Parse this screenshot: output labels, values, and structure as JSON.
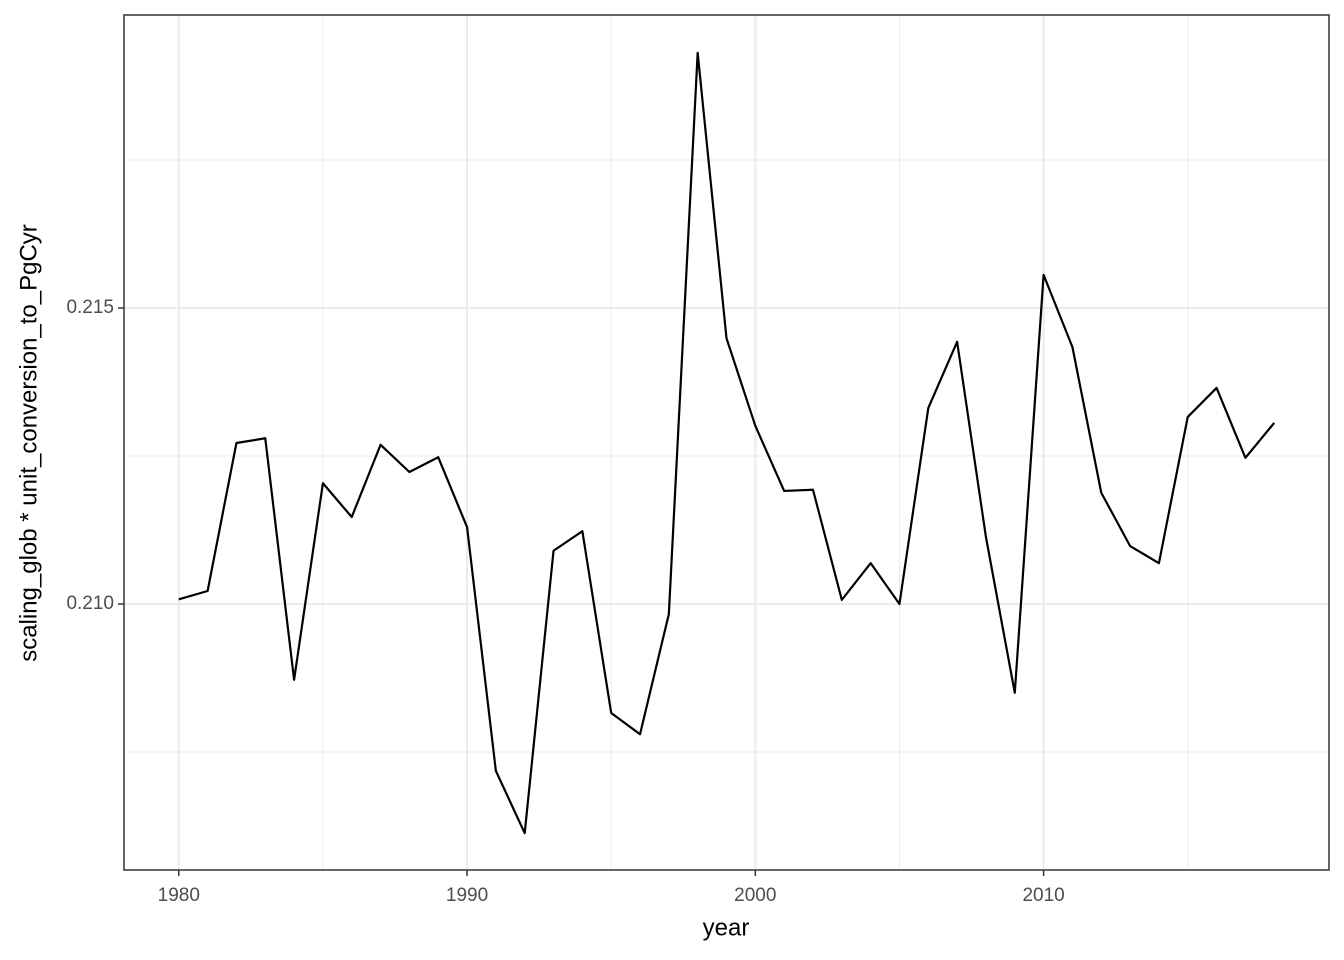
{
  "chart_data": {
    "type": "line",
    "x_label": "year",
    "y_label": "scaling_glob * unit_conversion_to_PgCyr",
    "x": [
      1980,
      1981,
      1982,
      1983,
      1984,
      1985,
      1986,
      1987,
      1988,
      1989,
      1990,
      1991,
      1992,
      1993,
      1994,
      1995,
      1996,
      1997,
      1998,
      1999,
      2000,
      2001,
      2002,
      2003,
      2004,
      2005,
      2006,
      2007,
      2008,
      2009,
      2010,
      2011,
      2012,
      2013,
      2014,
      2015,
      2016,
      2017,
      2018
    ],
    "series": [
      {
        "color": "#000000",
        "values": [
          0.21008,
          0.21022,
          0.21272,
          0.2128,
          0.20872,
          0.21204,
          0.21147,
          0.21269,
          0.21223,
          0.21248,
          0.2113,
          0.20718,
          0.20613,
          0.2109,
          0.21123,
          0.20816,
          0.2078,
          0.20983,
          0.21931,
          0.21449,
          0.21301,
          0.21191,
          0.21193,
          0.21007,
          0.21069,
          0.21,
          0.21331,
          0.21443,
          0.21113,
          0.2085,
          0.21556,
          0.21434,
          0.21188,
          0.21098,
          0.21069,
          0.21316,
          0.21365,
          0.21247,
          0.21306
        ]
      }
    ],
    "xlim": [
      1978.1,
      2019.9
    ],
    "ylim": [
      0.205507,
      0.21995
    ],
    "xticks": [
      1980,
      1990,
      2000,
      2010
    ],
    "yticks": [
      {
        "value": 0.21,
        "label": "0.210"
      },
      {
        "value": 0.215,
        "label": "0.215"
      }
    ],
    "x_minor_ticks": [
      1985,
      1995,
      2005,
      2015
    ],
    "y_minor_ticks": [
      0.2075,
      0.2125,
      0.2175
    ],
    "grid": true
  }
}
